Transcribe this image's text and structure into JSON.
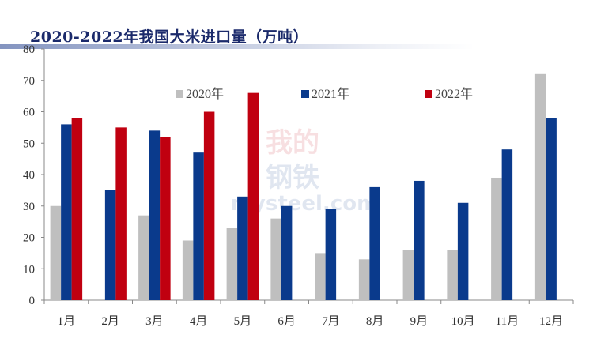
{
  "chart_data": {
    "type": "bar",
    "title": "2020-2022年我国大米进口量（万吨）",
    "categories": [
      "1月",
      "2月",
      "3月",
      "4月",
      "5月",
      "6月",
      "7月",
      "8月",
      "9月",
      "10月",
      "11月",
      "12月"
    ],
    "series": [
      {
        "name": "2020年",
        "color": "#bfbfbf",
        "values": [
          30,
          null,
          27,
          19,
          23,
          26,
          15,
          13,
          16,
          16,
          39,
          72
        ]
      },
      {
        "name": "2021年",
        "color": "#0a3a8c",
        "values": [
          56,
          35,
          54,
          47,
          33,
          30,
          29,
          36,
          38,
          31,
          48,
          58
        ]
      },
      {
        "name": "2022年",
        "color": "#c00010",
        "values": [
          58,
          55,
          52,
          60,
          66,
          null,
          null,
          null,
          null,
          null,
          null,
          null
        ]
      }
    ],
    "ylim": [
      0,
      80
    ],
    "yticks": [
      0,
      10,
      20,
      30,
      40,
      50,
      60,
      70,
      80
    ],
    "legend": "top",
    "grid": false
  },
  "watermark": {
    "line1": "我的",
    "line2": "钢铁",
    "url": "mysteel.com"
  }
}
